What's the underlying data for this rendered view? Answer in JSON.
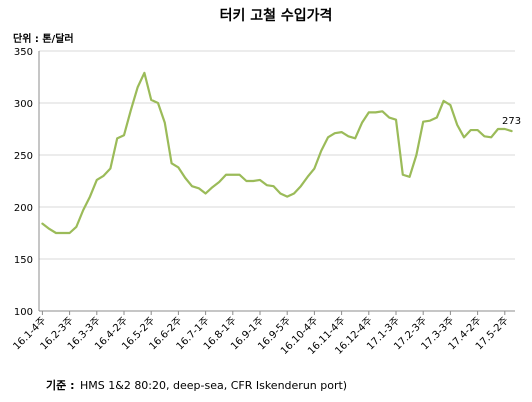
{
  "chart_data": {
    "type": "line",
    "title": "터키 고철 수입가격",
    "unit_label": "단위 : 톤/달러",
    "ylim": [
      100,
      350
    ],
    "yticks": [
      100,
      150,
      200,
      250,
      300,
      350
    ],
    "x_tick_labels": [
      "16.1-4주",
      "16.2-3주",
      "16.3-3주",
      "16.4-2주",
      "16.5-2주",
      "16.6-2주",
      "16.7-1주",
      "16.8-1주",
      "16.9-1주",
      "16.9-5주",
      "16.10-4주",
      "16.11-4주",
      "16.12-4주",
      "17.1-3주",
      "17.2-3주",
      "17.3-3주",
      "17.4-2주",
      "17.5-2주"
    ],
    "grid": true,
    "line_color": "#9bbb59",
    "series": [
      {
        "values": [
          184,
          179,
          175,
          175,
          175,
          181,
          197,
          210,
          226,
          230,
          237,
          266,
          269,
          293,
          315,
          329,
          303,
          300,
          281,
          242,
          238,
          228,
          220,
          218,
          213,
          219,
          224,
          231,
          231,
          231,
          225,
          225,
          226,
          221,
          220,
          213,
          210,
          213,
          220,
          229,
          237,
          254,
          267,
          271,
          272,
          268,
          266,
          281,
          291,
          291,
          292,
          286,
          284,
          231,
          229,
          250,
          282,
          283,
          286,
          302,
          298,
          279,
          267,
          274,
          274,
          268,
          267,
          275,
          275,
          273
        ]
      }
    ],
    "data_labels": [
      {
        "index": 69,
        "text": "273"
      }
    ],
    "source_label": "기준 :",
    "source_text": "HMS 1&2 80:20, deep-sea, CFR Iskenderun port)"
  }
}
